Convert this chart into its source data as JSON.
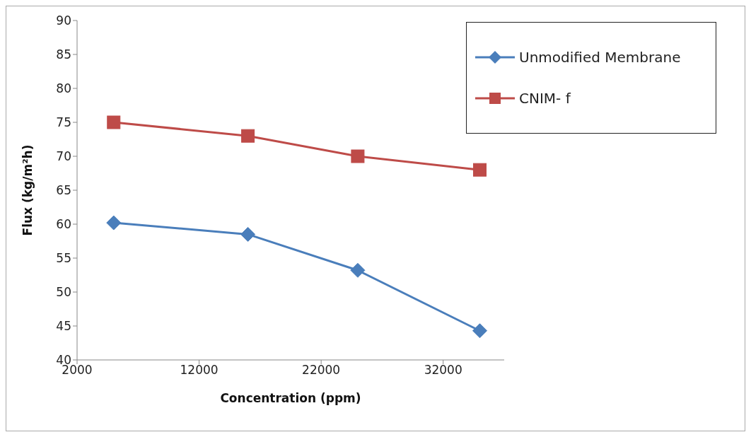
{
  "chart_data": {
    "type": "line",
    "xlabel": "Concentration (ppm)",
    "ylabel": "Flux (kg/m²h)",
    "x": [
      5000,
      16000,
      25000,
      35000
    ],
    "series": [
      {
        "name": "Unmodified Membrane",
        "color": "#4a7ebb",
        "marker": "diamond",
        "values": [
          60.2,
          58.5,
          53.2,
          44.3
        ]
      },
      {
        "name": "CNIM- f",
        "color": "#be4b48",
        "marker": "square",
        "values": [
          75,
          73,
          70,
          68
        ]
      }
    ],
    "xlim": [
      2000,
      37000
    ],
    "xticks": [
      2000,
      12000,
      22000,
      32000
    ],
    "ylim": [
      40,
      90
    ],
    "yticks": [
      40,
      45,
      50,
      55,
      60,
      65,
      70,
      75,
      80,
      85,
      90
    ],
    "grid": false,
    "legend": "top right"
  }
}
